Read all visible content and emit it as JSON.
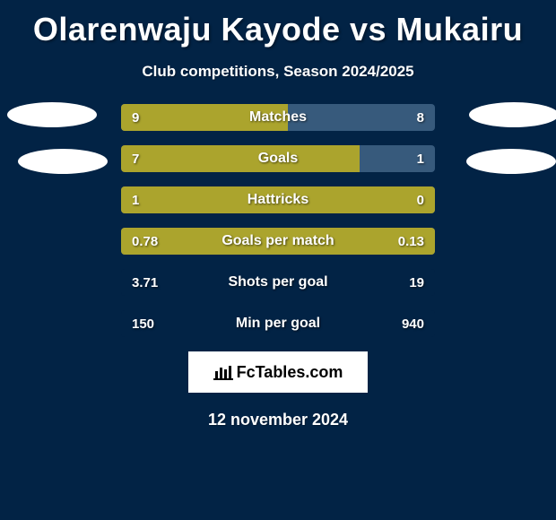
{
  "title": "Olarenwaju Kayode vs Mukairu",
  "subtitle": "Club competitions, Season 2024/2025",
  "date": "12 november 2024",
  "logo_text": "FcTables.com",
  "colors": {
    "background": "#022345",
    "left_fill": "#aba42d",
    "right_fill": "#375a7c",
    "text": "#ffffff"
  },
  "bars": [
    {
      "label": "Matches",
      "left_val": "9",
      "right_val": "8",
      "left_pct": 53,
      "right_pct": 47,
      "full_cover": true
    },
    {
      "label": "Goals",
      "left_val": "7",
      "right_val": "1",
      "left_pct": 76,
      "right_pct": 24,
      "full_cover": false
    },
    {
      "label": "Hattricks",
      "left_val": "1",
      "right_val": "0",
      "left_pct": 100,
      "right_pct": 0,
      "full_cover": true
    },
    {
      "label": "Goals per match",
      "left_val": "0.78",
      "right_val": "0.13",
      "left_pct": 100,
      "right_pct": 0,
      "full_cover": true
    },
    {
      "label": "Shots per goal",
      "left_val": "3.71",
      "right_val": "19",
      "left_pct": 0,
      "right_pct": 0,
      "full_cover": false
    },
    {
      "label": "Min per goal",
      "left_val": "150",
      "right_val": "940",
      "left_pct": 0,
      "right_pct": 0,
      "full_cover": false
    }
  ]
}
